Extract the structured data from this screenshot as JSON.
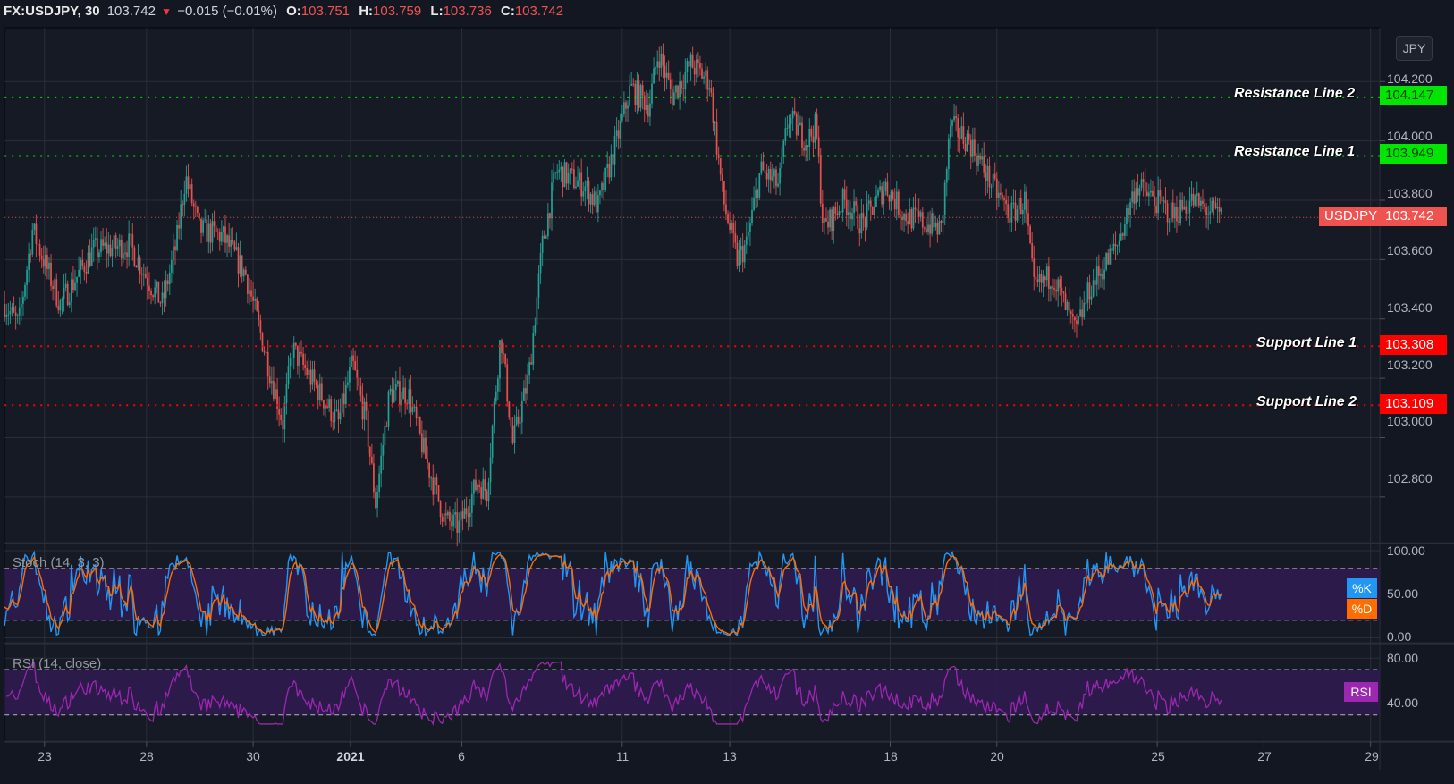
{
  "header": {
    "symbol": "FX:USDJPY, 30",
    "last": "103.742",
    "arrow": "▼",
    "change": "−0.015 (−0.01%)",
    "open_label": "O:",
    "open": "103.751",
    "high_label": "H:",
    "high": "103.759",
    "low_label": "L:",
    "low": "103.736",
    "close_label": "C:",
    "close": "103.742"
  },
  "currency_button": "JPY",
  "price_axis": {
    "ticks": [
      "104.200",
      "104.000",
      "103.800",
      "103.600",
      "103.400",
      "103.200",
      "103.000",
      "102.800"
    ],
    "last_price_tag": {
      "symbol": "USDJPY",
      "value": "103.742"
    }
  },
  "horizontal_lines": [
    {
      "label": "Resistance Line 2",
      "value": "104.147",
      "color": "#00e600",
      "kind": "resistance"
    },
    {
      "label": "Resistance Line 1",
      "value": "103.949",
      "color": "#00e600",
      "kind": "resistance"
    },
    {
      "label": "Support Line 1",
      "value": "103.308",
      "color": "#ff0000",
      "kind": "support"
    },
    {
      "label": "Support Line 2",
      "value": "103.109",
      "color": "#ff0000",
      "kind": "support"
    }
  ],
  "time_axis": {
    "ticks": [
      {
        "label": "23",
        "bold": false
      },
      {
        "label": "28",
        "bold": false
      },
      {
        "label": "30",
        "bold": false
      },
      {
        "label": "2021",
        "bold": true
      },
      {
        "label": "6",
        "bold": false
      },
      {
        "label": "11",
        "bold": false
      },
      {
        "label": "13",
        "bold": false
      },
      {
        "label": "18",
        "bold": false
      },
      {
        "label": "20",
        "bold": false
      },
      {
        "label": "25",
        "bold": false
      },
      {
        "label": "27",
        "bold": false
      },
      {
        "label": "29",
        "bold": false
      }
    ]
  },
  "stoch": {
    "title": "Stoch (14, 3, 3)",
    "ticks": [
      "100.00",
      "50.00",
      "0.00"
    ],
    "k_label": "%K",
    "d_label": "%D",
    "k_color": "#2196f3",
    "d_color": "#ff6d00",
    "upper_band": 80,
    "lower_band": 20
  },
  "rsi": {
    "title": "RSI (14, close)",
    "ticks": [
      "80.00",
      "40.00"
    ],
    "label": "RSI",
    "color": "#9c27b0",
    "upper_band": 70,
    "lower_band": 30
  },
  "colors": {
    "background": "#131722",
    "up": "#26a69a",
    "down": "#ef5350",
    "grid": "#2a2e39",
    "band_fill": "#2f1b4f"
  },
  "chart_data": {
    "type": "candlestick",
    "title": "FX:USDJPY, 30",
    "xlabel": "",
    "ylabel": "JPY",
    "ylim": [
      102.65,
      104.38
    ],
    "x_tick_labels": [
      "23",
      "28",
      "30",
      "2021",
      "6",
      "11",
      "13",
      "18",
      "20",
      "25",
      "27",
      "29"
    ],
    "y_tick_labels": [
      "102.800",
      "103.000",
      "103.200",
      "103.400",
      "103.600",
      "103.800",
      "104.000",
      "104.200"
    ],
    "grid": true,
    "last": {
      "open": 103.751,
      "high": 103.759,
      "low": 103.736,
      "close": 103.742,
      "change": -0.015,
      "change_pct": -0.01
    },
    "price_path_keypoints": [
      [
        5,
        103.45
      ],
      [
        20,
        103.38
      ],
      [
        35,
        103.7
      ],
      [
        65,
        103.45
      ],
      [
        100,
        103.63
      ],
      [
        140,
        103.65
      ],
      [
        160,
        103.53
      ],
      [
        175,
        103.45
      ],
      [
        190,
        103.65
      ],
      [
        200,
        103.88
      ],
      [
        215,
        103.7
      ],
      [
        240,
        103.68
      ],
      [
        265,
        103.55
      ],
      [
        285,
        103.3
      ],
      [
        305,
        103.05
      ],
      [
        315,
        103.3
      ],
      [
        345,
        103.15
      ],
      [
        365,
        103.05
      ],
      [
        380,
        103.25
      ],
      [
        395,
        103.05
      ],
      [
        405,
        102.78
      ],
      [
        420,
        103.15
      ],
      [
        440,
        103.15
      ],
      [
        460,
        102.92
      ],
      [
        480,
        102.72
      ],
      [
        495,
        102.7
      ],
      [
        515,
        102.85
      ],
      [
        525,
        102.82
      ],
      [
        540,
        103.35
      ],
      [
        553,
        102.98
      ],
      [
        570,
        103.2
      ],
      [
        585,
        103.65
      ],
      [
        600,
        103.9
      ],
      [
        630,
        103.85
      ],
      [
        645,
        103.78
      ],
      [
        665,
        104.0
      ],
      [
        680,
        104.18
      ],
      [
        700,
        104.12
      ],
      [
        710,
        104.3
      ],
      [
        725,
        104.15
      ],
      [
        745,
        104.26
      ],
      [
        765,
        104.2
      ],
      [
        780,
        103.8
      ],
      [
        795,
        103.6
      ],
      [
        805,
        103.65
      ],
      [
        820,
        103.9
      ],
      [
        840,
        103.85
      ],
      [
        850,
        104.08
      ],
      [
        870,
        104.0
      ],
      [
        880,
        104.05
      ],
      [
        888,
        103.7
      ],
      [
        910,
        103.8
      ],
      [
        930,
        103.72
      ],
      [
        955,
        103.85
      ],
      [
        975,
        103.75
      ],
      [
        1000,
        103.72
      ],
      [
        1015,
        103.7
      ],
      [
        1025,
        104.05
      ],
      [
        1045,
        104.0
      ],
      [
        1070,
        103.85
      ],
      [
        1090,
        103.75
      ],
      [
        1105,
        103.8
      ],
      [
        1115,
        103.5
      ],
      [
        1135,
        103.55
      ],
      [
        1160,
        103.35
      ],
      [
        1175,
        103.5
      ],
      [
        1185,
        103.55
      ],
      [
        1205,
        103.65
      ],
      [
        1225,
        103.85
      ],
      [
        1245,
        103.8
      ],
      [
        1265,
        103.75
      ],
      [
        1285,
        103.8
      ],
      [
        1300,
        103.77
      ],
      [
        1318,
        103.742
      ]
    ],
    "series": [
      {
        "name": "Stoch %K (14,3,3)",
        "range": [
          0,
          100
        ],
        "bands": [
          20,
          80
        ]
      },
      {
        "name": "Stoch %D (14,3,3)",
        "range": [
          0,
          100
        ],
        "bands": [
          20,
          80
        ]
      },
      {
        "name": "RSI (14, close)",
        "range": [
          20,
          85
        ],
        "bands": [
          30,
          70
        ],
        "last_value": 51
      }
    ]
  }
}
